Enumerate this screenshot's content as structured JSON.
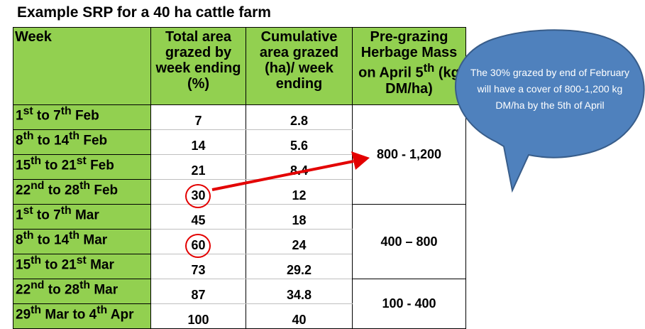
{
  "title": "Example SRP for a 40 ha cattle farm",
  "table": {
    "headers": {
      "week": "Week",
      "total_area": "Total area grazed by week ending (%)",
      "cumulative": "Cumulative area grazed (ha)/ week ending",
      "pregrazing_a": "Pre-grazing Herbage Mass on April 5",
      "pregrazing_sup": "th",
      "pregrazing_b": "(kg DM/ha)"
    },
    "rows": [
      {
        "w1": "1",
        "s1": "st",
        "m": " to 7",
        "s2": "th",
        "t": " Feb",
        "pct": "7",
        "cum": "2.8"
      },
      {
        "w1": "8",
        "s1": "th",
        "m": " to 14",
        "s2": "th",
        "t": " Feb",
        "pct": "14",
        "cum": "5.6"
      },
      {
        "w1": "15",
        "s1": "th",
        "m": " to 21",
        "s2": "st",
        "t": " Feb",
        "pct": "21",
        "cum": "8.4"
      },
      {
        "w1": "22",
        "s1": "nd",
        "m": " to 28",
        "s2": "th",
        "t": " Feb",
        "pct": "30",
        "cum": "12"
      },
      {
        "w1": "1",
        "s1": "st",
        "m": " to 7",
        "s2": "th",
        "t": " Mar",
        "pct": "45",
        "cum": "18"
      },
      {
        "w1": "8",
        "s1": "th",
        "m": " to 14",
        "s2": "th",
        "t": " Mar",
        "pct": "60",
        "cum": "24"
      },
      {
        "w1": "15",
        "s1": "th",
        "m": " to 21",
        "s2": "st",
        "t": " Mar",
        "pct": "73",
        "cum": "29.2"
      },
      {
        "w1": "22",
        "s1": "nd",
        "m": " to 28",
        "s2": "th",
        "t": " Mar",
        "pct": "87",
        "cum": "34.8"
      },
      {
        "w1": "29",
        "s1": "th",
        "m": " Mar to 4",
        "s2": "th",
        "t": " Apr",
        "pct": "100",
        "cum": "40"
      }
    ],
    "pregrazing_groups": [
      "800 - 1,200",
      "400 – 800",
      "100 - 400"
    ]
  },
  "callout": {
    "text": "The 30% grazed by end of February will have a cover of 800-1,200 kg DM/ha by the 5th of April",
    "fill_color": "#4f81bd",
    "stroke_color": "#385d8a"
  },
  "annotation_color": "#e30000"
}
